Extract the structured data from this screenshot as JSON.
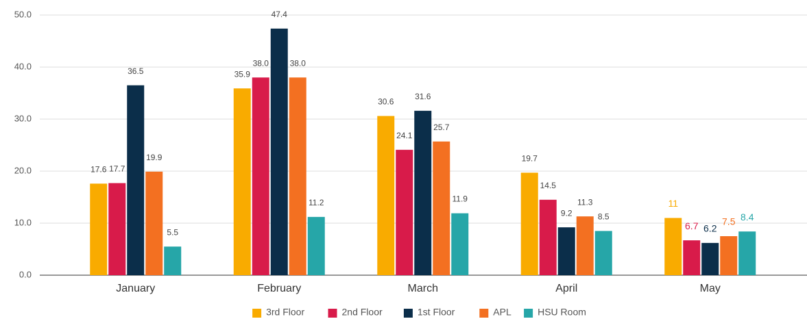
{
  "chart_data": {
    "type": "bar",
    "categories": [
      "January",
      "February",
      "March",
      "April",
      "May"
    ],
    "series": [
      {
        "name": "3rd Floor",
        "color": "#f9ab00",
        "values": [
          17.6,
          35.9,
          30.6,
          19.7,
          11
        ],
        "value_labels": [
          "17.6",
          "35.9",
          "30.6",
          "19.7",
          "11"
        ]
      },
      {
        "name": "2nd Floor",
        "color": "#d81b4a",
        "values": [
          17.7,
          38,
          24.1,
          14.5,
          6.7
        ],
        "value_labels": [
          "17.7",
          "38.0",
          "24.1",
          "14.5",
          "6.7"
        ]
      },
      {
        "name": "1st Floor",
        "color": "#0b2e4a",
        "values": [
          36.5,
          47.4,
          31.6,
          9.2,
          6.2
        ],
        "value_labels": [
          "36.5",
          "47.4",
          "31.6",
          "9.2",
          "6.2"
        ]
      },
      {
        "name": "APL",
        "color": "#f37021",
        "values": [
          19.9,
          38,
          25.7,
          11.3,
          7.5
        ],
        "value_labels": [
          "19.9",
          "38.0",
          "25.7",
          "11.3",
          "7.5"
        ]
      },
      {
        "name": "HSU Room",
        "color": "#26a6a8",
        "values": [
          5.5,
          11.2,
          11.9,
          8.5,
          8.4
        ],
        "value_labels": [
          "5.5",
          "11.2",
          "11.9",
          "8.5",
          "8.4"
        ]
      }
    ],
    "ylim": [
      0,
      50
    ],
    "yticks": [
      {
        "value": 0,
        "label": "0.0"
      },
      {
        "value": 10,
        "label": "10.0"
      },
      {
        "value": 20,
        "label": "20.0"
      },
      {
        "value": 30,
        "label": "30.0"
      },
      {
        "value": 40,
        "label": "40.0"
      },
      {
        "value": 50,
        "label": "50.0"
      }
    ],
    "grid": true,
    "legend": "bottom"
  }
}
